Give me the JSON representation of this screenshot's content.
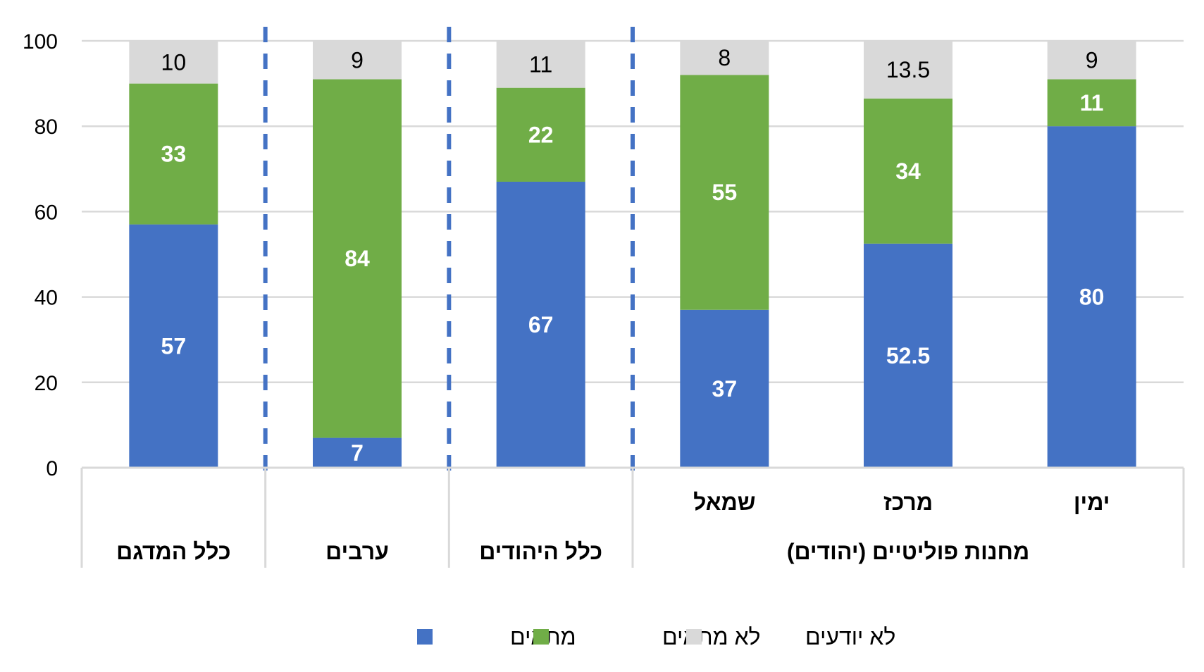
{
  "chart_data": {
    "type": "bar",
    "stacked": true,
    "ylim": [
      0,
      100
    ],
    "yticks": [
      0,
      20,
      40,
      60,
      80,
      100
    ],
    "grid": true,
    "legend_position": "bottom",
    "categories": [
      "כלל המדגם",
      "ערבים",
      "כלל היהודים",
      "שמאל",
      "מרכז",
      "ימין"
    ],
    "group_labels": [
      {
        "label": "כלל המדגם",
        "from": 0,
        "to": 0
      },
      {
        "label": "ערבים",
        "from": 1,
        "to": 1
      },
      {
        "label": "כלל היהודים",
        "from": 2,
        "to": 2
      },
      {
        "label": "מחנות פוליטיים (יהודים)",
        "from": 3,
        "to": 5
      }
    ],
    "subcategory_labels": [
      "",
      "",
      "",
      "שמאל",
      "מרכז",
      "ימין"
    ],
    "series": [
      {
        "name": "מתאים",
        "color": "#4472C4",
        "values": [
          57,
          7,
          67,
          37,
          52.5,
          80
        ]
      },
      {
        "name": "לא מתאים",
        "color": "#70AD47",
        "values": [
          33,
          84,
          22,
          55,
          34,
          11
        ]
      },
      {
        "name": "לא יודעים",
        "color": "#D9D9D9",
        "values": [
          10,
          9,
          11,
          8,
          13.5,
          9
        ]
      }
    ],
    "dashed_separators_after": [
      0,
      1,
      2
    ]
  }
}
